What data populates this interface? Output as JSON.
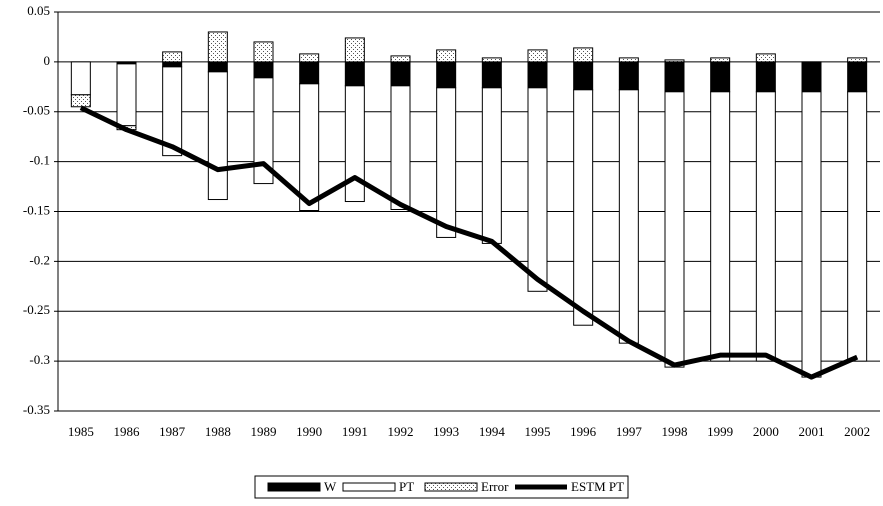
{
  "chart_data": {
    "type": "bar",
    "stacked": true,
    "categories": [
      "1985",
      "1986",
      "1987",
      "1988",
      "1989",
      "1990",
      "1991",
      "1992",
      "1993",
      "1994",
      "1995",
      "1996",
      "1997",
      "1998",
      "1999",
      "2000",
      "2001",
      "2002"
    ],
    "series": [
      {
        "name": "W",
        "color": "#000000",
        "values": [
          0,
          -0.002,
          -0.005,
          -0.01,
          -0.016,
          -0.022,
          -0.024,
          -0.024,
          -0.026,
          -0.026,
          -0.026,
          -0.028,
          -0.028,
          -0.03,
          -0.03,
          -0.03,
          -0.03,
          -0.03
        ]
      },
      {
        "name": "PT",
        "color": "#ffffff",
        "values": [
          -0.033,
          -0.062,
          -0.089,
          -0.128,
          -0.106,
          -0.127,
          -0.116,
          -0.124,
          -0.15,
          -0.156,
          -0.204,
          -0.236,
          -0.254,
          -0.276,
          -0.27,
          -0.27,
          -0.286,
          -0.27
        ]
      },
      {
        "name": "Error",
        "color": "#ffffff",
        "pattern": "dots",
        "values": [
          -0.012,
          -0.004,
          0.01,
          0.03,
          0.02,
          0.008,
          0.024,
          0.006,
          0.012,
          0.004,
          0.012,
          0.014,
          0.004,
          0.002,
          0.004,
          0.008,
          0,
          0.004
        ]
      },
      {
        "name": "ESTM PT",
        "type": "line",
        "color": "#000000",
        "values": [
          -0.046,
          -0.068,
          -0.085,
          -0.108,
          -0.102,
          -0.142,
          -0.116,
          -0.143,
          -0.165,
          -0.18,
          -0.218,
          -0.25,
          -0.28,
          -0.304,
          -0.294,
          -0.294,
          -0.316,
          -0.296
        ]
      }
    ],
    "ylim": [
      -0.35,
      0.05
    ],
    "yticks": [
      0.05,
      0,
      -0.05,
      -0.1,
      -0.15,
      -0.2,
      -0.25,
      -0.3,
      -0.35
    ],
    "grid": true,
    "legend": "bottom"
  }
}
